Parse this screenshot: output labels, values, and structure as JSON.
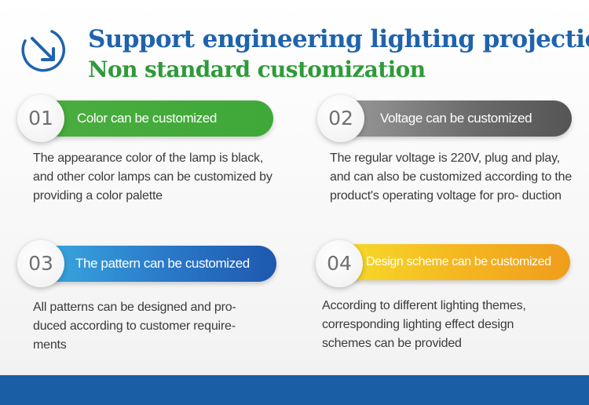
{
  "header": {
    "title": "Support engineering lighting projection",
    "subtitle": "Non standard customization",
    "icon": "arrow-circle-icon"
  },
  "features": [
    {
      "number": "01",
      "label": "Color can be customized",
      "description": "The appearance color of the lamp is black, and other color lamps can be customized by providing a color palette",
      "color": "#3aa63a"
    },
    {
      "number": "02",
      "label": "Voltage can be customized",
      "description": "The regular voltage is 220V, plug and play, and can also be customized according to the product's operating voltage for pro- duction",
      "color": "#5a5a5a"
    },
    {
      "number": "03",
      "label": "The pattern can be customized",
      "description": "All patterns can be designed and pro- duced according to customer require- ments",
      "color": "#1e63b8"
    },
    {
      "number": "04",
      "label": "Design scheme can be customized",
      "description": "According to different lighting themes, corresponding lighting effect design schemes can be provided",
      "color": "#f0a020"
    }
  ],
  "colors": {
    "title": "#1f63ad",
    "subtitle": "#2f9a3a",
    "bottom_bar": "#1a5fa6"
  }
}
